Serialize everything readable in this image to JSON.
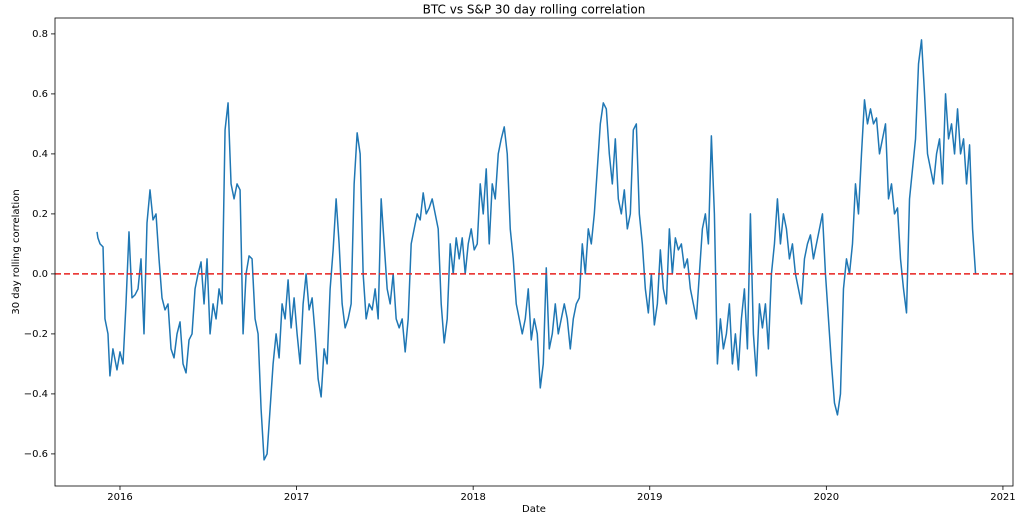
{
  "chart_data": {
    "type": "line",
    "title": "BTC vs S&P 30 day rolling correlation",
    "xlabel": "Date",
    "ylabel": "30 day rolling correlation",
    "color": "#1f77b4",
    "xlim": [
      2015.632,
      2021.057
    ],
    "xticks": [
      2016,
      2017,
      2018,
      2019,
      2020,
      2021
    ],
    "ylim": [
      -0.707,
      0.853
    ],
    "yticks": [
      {
        "value": -0.6,
        "label": "−0.6"
      },
      {
        "value": -0.4,
        "label": "−0.4"
      },
      {
        "value": -0.2,
        "label": "−0.2"
      },
      {
        "value": 0,
        "label": "0.0"
      },
      0.2,
      0.4,
      0.6,
      0.8
    ],
    "hlines": [
      {
        "y": 0,
        "color": "#e8211e",
        "style": "dashed"
      }
    ],
    "x": [
      2015.87,
      2015.875,
      2015.887,
      2015.904,
      2015.915,
      2015.932,
      2015.943,
      2015.96,
      2015.983,
      2016,
      2016.017,
      2016.034,
      2016.051,
      2016.068,
      2016.085,
      2016.102,
      2016.119,
      2016.136,
      2016.153,
      2016.17,
      2016.187,
      2016.204,
      2016.221,
      2016.238,
      2016.255,
      2016.272,
      2016.289,
      2016.306,
      2016.323,
      2016.34,
      2016.357,
      2016.374,
      2016.391,
      2016.408,
      2016.425,
      2016.442,
      2016.459,
      2016.476,
      2016.493,
      2016.51,
      2016.527,
      2016.544,
      2016.561,
      2016.578,
      2016.595,
      2016.612,
      2016.629,
      2016.646,
      2016.663,
      2016.68,
      2016.697,
      2016.714,
      2016.731,
      2016.748,
      2016.765,
      2016.782,
      2016.799,
      2016.816,
      2016.833,
      2016.85,
      2016.867,
      2016.884,
      2016.901,
      2016.918,
      2016.935,
      2016.952,
      2016.969,
      2016.986,
      2017.003,
      2017.02,
      2017.037,
      2017.054,
      2017.071,
      2017.088,
      2017.105,
      2017.122,
      2017.139,
      2017.156,
      2017.173,
      2017.19,
      2017.207,
      2017.224,
      2017.241,
      2017.258,
      2017.275,
      2017.292,
      2017.309,
      2017.326,
      2017.343,
      2017.36,
      2017.377,
      2017.394,
      2017.411,
      2017.428,
      2017.445,
      2017.462,
      2017.479,
      2017.496,
      2017.513,
      2017.53,
      2017.547,
      2017.564,
      2017.581,
      2017.598,
      2017.615,
      2017.632,
      2017.649,
      2017.666,
      2017.683,
      2017.7,
      2017.717,
      2017.734,
      2017.751,
      2017.768,
      2017.785,
      2017.802,
      2017.819,
      2017.836,
      2017.853,
      2017.87,
      2017.887,
      2017.904,
      2017.921,
      2017.938,
      2017.955,
      2017.972,
      2017.989,
      2018.006,
      2018.023,
      2018.04,
      2018.057,
      2018.074,
      2018.091,
      2018.108,
      2018.125,
      2018.142,
      2018.159,
      2018.176,
      2018.193,
      2018.21,
      2018.227,
      2018.244,
      2018.261,
      2018.278,
      2018.295,
      2018.312,
      2018.329,
      2018.346,
      2018.363,
      2018.38,
      2018.397,
      2018.414,
      2018.431,
      2018.448,
      2018.465,
      2018.482,
      2018.499,
      2018.516,
      2018.533,
      2018.55,
      2018.567,
      2018.584,
      2018.601,
      2018.618,
      2018.635,
      2018.652,
      2018.669,
      2018.686,
      2018.703,
      2018.72,
      2018.737,
      2018.754,
      2018.771,
      2018.788,
      2018.805,
      2018.822,
      2018.839,
      2018.856,
      2018.873,
      2018.89,
      2018.907,
      2018.924,
      2018.941,
      2018.958,
      2018.975,
      2018.992,
      2019.009,
      2019.026,
      2019.043,
      2019.06,
      2019.077,
      2019.094,
      2019.111,
      2019.128,
      2019.145,
      2019.162,
      2019.179,
      2019.196,
      2019.213,
      2019.23,
      2019.247,
      2019.264,
      2019.281,
      2019.298,
      2019.315,
      2019.332,
      2019.349,
      2019.366,
      2019.383,
      2019.4,
      2019.417,
      2019.434,
      2019.451,
      2019.468,
      2019.485,
      2019.502,
      2019.519,
      2019.536,
      2019.553,
      2019.57,
      2019.587,
      2019.604,
      2019.621,
      2019.638,
      2019.655,
      2019.672,
      2019.689,
      2019.706,
      2019.723,
      2019.74,
      2019.757,
      2019.774,
      2019.791,
      2019.808,
      2019.825,
      2019.842,
      2019.859,
      2019.876,
      2019.893,
      2019.91,
      2019.927,
      2019.944,
      2019.961,
      2019.978,
      2019.995,
      2020.012,
      2020.029,
      2020.046,
      2020.063,
      2020.08,
      2020.097,
      2020.114,
      2020.131,
      2020.148,
      2020.165,
      2020.182,
      2020.199,
      2020.216,
      2020.233,
      2020.25,
      2020.267,
      2020.284,
      2020.301,
      2020.318,
      2020.335,
      2020.352,
      2020.369,
      2020.386,
      2020.403,
      2020.42,
      2020.437,
      2020.454,
      2020.471,
      2020.488,
      2020.505,
      2020.522,
      2020.539,
      2020.556,
      2020.573,
      2020.59,
      2020.607,
      2020.624,
      2020.641,
      2020.658,
      2020.675,
      2020.692,
      2020.709,
      2020.726,
      2020.743,
      2020.76,
      2020.777,
      2020.794,
      2020.811,
      2020.828,
      2020.845
    ],
    "values": [
      0.14,
      0.12,
      0.1,
      0.09,
      -0.15,
      -0.2,
      -0.34,
      -0.25,
      -0.32,
      -0.26,
      -0.3,
      -0.1,
      0.14,
      -0.08,
      -0.07,
      -0.05,
      0.05,
      -0.2,
      0.17,
      0.28,
      0.18,
      0.2,
      0.05,
      -0.08,
      -0.12,
      -0.1,
      -0.25,
      -0.28,
      -0.2,
      -0.16,
      -0.3,
      -0.33,
      -0.22,
      -0.2,
      -0.05,
      0.0,
      0.04,
      -0.1,
      0.05,
      -0.2,
      -0.1,
      -0.15,
      -0.05,
      -0.1,
      0.48,
      0.57,
      0.3,
      0.25,
      0.3,
      0.28,
      -0.2,
      0.0,
      0.06,
      0.05,
      -0.15,
      -0.2,
      -0.45,
      -0.62,
      -0.6,
      -0.45,
      -0.3,
      -0.2,
      -0.28,
      -0.1,
      -0.15,
      -0.02,
      -0.18,
      -0.08,
      -0.2,
      -0.3,
      -0.1,
      0.0,
      -0.12,
      -0.08,
      -0.2,
      -0.35,
      -0.41,
      -0.25,
      -0.3,
      -0.05,
      0.08,
      0.25,
      0.1,
      -0.1,
      -0.18,
      -0.15,
      -0.1,
      0.3,
      0.47,
      0.4,
      0.0,
      -0.15,
      -0.1,
      -0.12,
      -0.05,
      -0.15,
      0.25,
      0.1,
      -0.05,
      -0.1,
      0.0,
      -0.15,
      -0.18,
      -0.15,
      -0.26,
      -0.15,
      0.1,
      0.15,
      0.2,
      0.18,
      0.27,
      0.2,
      0.22,
      0.25,
      0.2,
      0.15,
      -0.1,
      -0.23,
      -0.15,
      0.1,
      0.0,
      0.12,
      0.05,
      0.12,
      0.0,
      0.1,
      0.15,
      0.08,
      0.1,
      0.3,
      0.2,
      0.35,
      0.1,
      0.3,
      0.25,
      0.4,
      0.45,
      0.49,
      0.4,
      0.15,
      0.05,
      -0.1,
      -0.15,
      -0.2,
      -0.15,
      -0.05,
      -0.22,
      -0.15,
      -0.2,
      -0.38,
      -0.3,
      0.02,
      -0.25,
      -0.2,
      -0.1,
      -0.2,
      -0.15,
      -0.1,
      -0.15,
      -0.25,
      -0.15,
      -0.1,
      -0.08,
      0.1,
      0.0,
      0.15,
      0.1,
      0.2,
      0.35,
      0.5,
      0.57,
      0.55,
      0.4,
      0.3,
      0.45,
      0.25,
      0.2,
      0.28,
      0.15,
      0.2,
      0.48,
      0.5,
      0.2,
      0.1,
      -0.05,
      -0.13,
      0.0,
      -0.17,
      -0.1,
      0.08,
      -0.05,
      -0.1,
      0.15,
      0.0,
      0.12,
      0.08,
      0.1,
      0.02,
      0.05,
      -0.05,
      -0.1,
      -0.15,
      0.0,
      0.15,
      0.2,
      0.1,
      0.46,
      0.2,
      -0.3,
      -0.15,
      -0.25,
      -0.2,
      -0.1,
      -0.3,
      -0.2,
      -0.32,
      -0.15,
      -0.05,
      -0.25,
      0.2,
      -0.2,
      -0.34,
      -0.1,
      -0.18,
      -0.1,
      -0.25,
      0.0,
      0.1,
      0.25,
      0.1,
      0.2,
      0.15,
      0.05,
      0.1,
      0.0,
      -0.05,
      -0.1,
      0.05,
      0.1,
      0.13,
      0.05,
      0.1,
      0.15,
      0.2,
      0.0,
      -0.15,
      -0.3,
      -0.43,
      -0.47,
      -0.4,
      -0.05,
      0.05,
      0.0,
      0.1,
      0.3,
      0.2,
      0.4,
      0.58,
      0.5,
      0.55,
      0.5,
      0.52,
      0.4,
      0.45,
      0.5,
      0.25,
      0.3,
      0.2,
      0.22,
      0.05,
      -0.05,
      -0.13,
      0.25,
      0.35,
      0.45,
      0.7,
      0.78,
      0.6,
      0.4,
      0.35,
      0.3,
      0.4,
      0.45,
      0.3,
      0.6,
      0.45,
      0.5,
      0.4,
      0.55,
      0.4,
      0.45,
      0.3,
      0.43,
      0.15,
      0.0
    ]
  }
}
